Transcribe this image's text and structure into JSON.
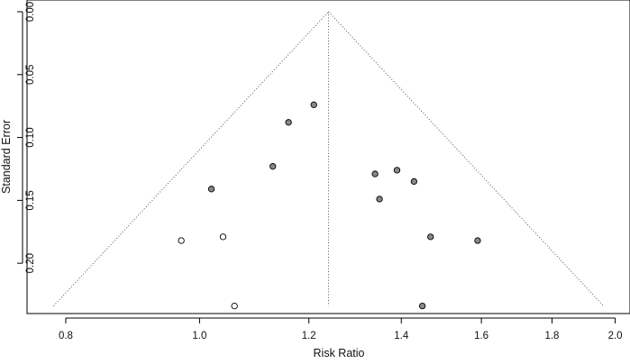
{
  "chart_data": {
    "type": "scatter",
    "subtype": "funnel-plot",
    "title": "",
    "xlabel": "Risk Ratio",
    "ylabel": "Standard Error",
    "x_scale": "log",
    "xlim": [
      0.75,
      2.05
    ],
    "ylim": [
      0.0,
      0.24
    ],
    "y_reversed": true,
    "x_ticks": [
      0.8,
      1.0,
      1.2,
      1.4,
      1.6,
      1.8,
      2.0
    ],
    "x_tick_labels": [
      "0.8",
      "1.0",
      "1.2",
      "1.4",
      "1.6",
      "1.8",
      "2.0"
    ],
    "y_ticks": [
      0.0,
      0.05,
      0.1,
      0.15,
      0.2
    ],
    "y_tick_labels": [
      "0.00",
      "0.05",
      "0.10",
      "0.15",
      "0.20"
    ],
    "summary_estimate": 1.24,
    "funnel_multiplier": 1.96,
    "funnel_se_max": 0.234,
    "grid": false,
    "series": [
      {
        "kind": "observed",
        "fill": "#888888",
        "points": [
          {
            "x": 1.21,
            "y": 0.074
          },
          {
            "x": 1.16,
            "y": 0.088
          },
          {
            "x": 1.13,
            "y": 0.123
          },
          {
            "x": 1.02,
            "y": 0.141
          },
          {
            "x": 1.34,
            "y": 0.129
          },
          {
            "x": 1.39,
            "y": 0.126
          },
          {
            "x": 1.43,
            "y": 0.135
          },
          {
            "x": 1.35,
            "y": 0.149
          },
          {
            "x": 1.47,
            "y": 0.179
          },
          {
            "x": 1.59,
            "y": 0.182
          },
          {
            "x": 1.45,
            "y": 0.234
          }
        ]
      },
      {
        "kind": "imputed",
        "fill": "#ffffff",
        "points": [
          {
            "x": 0.97,
            "y": 0.182
          },
          {
            "x": 1.04,
            "y": 0.179
          },
          {
            "x": 1.06,
            "y": 0.234
          }
        ]
      }
    ]
  }
}
